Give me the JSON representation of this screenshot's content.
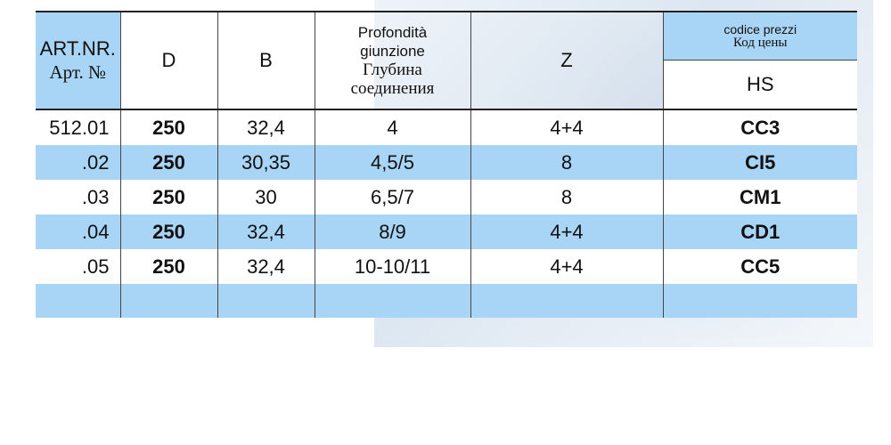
{
  "header": {
    "art_line1": "ART.NR.",
    "art_line2": "Арт. №",
    "d": "D",
    "b": "B",
    "depth_it_1": "Profondità",
    "depth_it_2": "giunzione",
    "depth_ru_1": "Глубина",
    "depth_ru_2": "соединения",
    "z": "Z",
    "price_it": "codice prezzi",
    "price_ru": "Код цены",
    "price_sub": "HS"
  },
  "rows": [
    {
      "art": "512.01",
      "d": "250",
      "b": "32,4",
      "depth": "4",
      "z": "4+4",
      "hs": "CC3"
    },
    {
      "art": ".02",
      "d": "250",
      "b": "30,35",
      "depth": "4,5/5",
      "z": "8",
      "hs": "CI5"
    },
    {
      "art": ".03",
      "d": "250",
      "b": "30",
      "depth": "6,5/7",
      "z": "8",
      "hs": "CM1"
    },
    {
      "art": ".04",
      "d": "250",
      "b": "32,4",
      "depth": "8/9",
      "z": "4+4",
      "hs": "CD1"
    },
    {
      "art": ".05",
      "d": "250",
      "b": "32,4",
      "depth": "10-10/11",
      "z": "4+4",
      "hs": "CC5"
    },
    {
      "art": "",
      "d": "",
      "b": "",
      "depth": "",
      "z": "",
      "hs": ""
    }
  ],
  "colors": {
    "row_blue": "#a8d4f5",
    "border": "#222222"
  }
}
